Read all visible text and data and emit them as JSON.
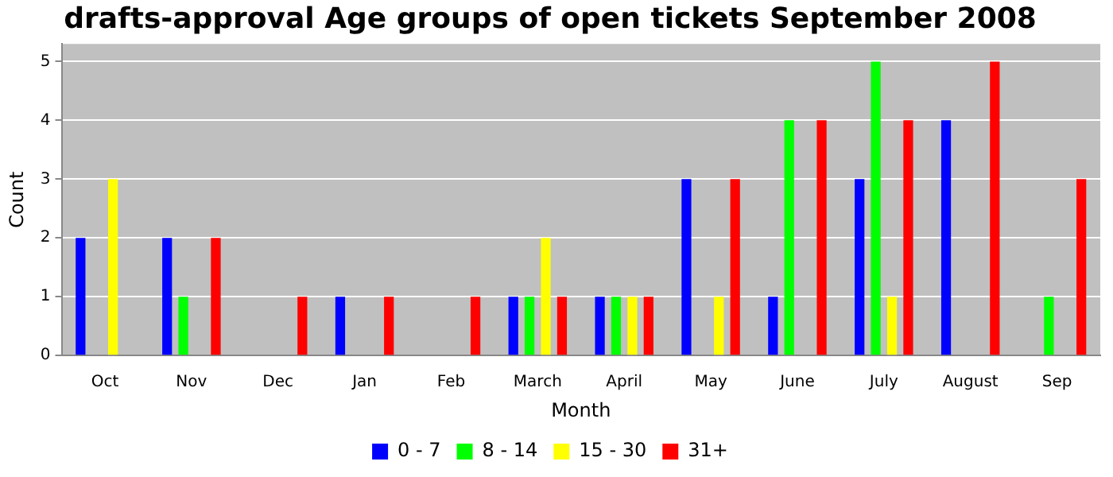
{
  "chart_data": {
    "type": "bar",
    "title": "drafts-approval Age groups of open tickets September 2008",
    "xlabel": "Month",
    "ylabel": "Count",
    "categories": [
      "Oct",
      "Nov",
      "Dec",
      "Jan",
      "Feb",
      "March",
      "April",
      "May",
      "June",
      "July",
      "August",
      "Sep"
    ],
    "series": [
      {
        "name": "0 - 7",
        "color": "#0000ff",
        "values": [
          2,
          2,
          0,
          1,
          0,
          1,
          1,
          3,
          1,
          3,
          4,
          0
        ]
      },
      {
        "name": "8 - 14",
        "color": "#00ff00",
        "values": [
          0,
          1,
          0,
          0,
          0,
          1,
          1,
          0,
          4,
          5,
          0,
          1
        ]
      },
      {
        "name": "15 - 30",
        "color": "#ffff00",
        "values": [
          3,
          0,
          0,
          0,
          0,
          2,
          1,
          1,
          0,
          1,
          0,
          0
        ]
      },
      {
        "name": "31+",
        "color": "#ff0000",
        "values": [
          0,
          2,
          1,
          1,
          1,
          1,
          1,
          3,
          4,
          4,
          5,
          3
        ]
      }
    ],
    "ylim": [
      0,
      5.3
    ],
    "yticks": [
      0,
      1,
      2,
      3,
      4,
      5
    ],
    "grid": "y",
    "legend": "bottom"
  }
}
